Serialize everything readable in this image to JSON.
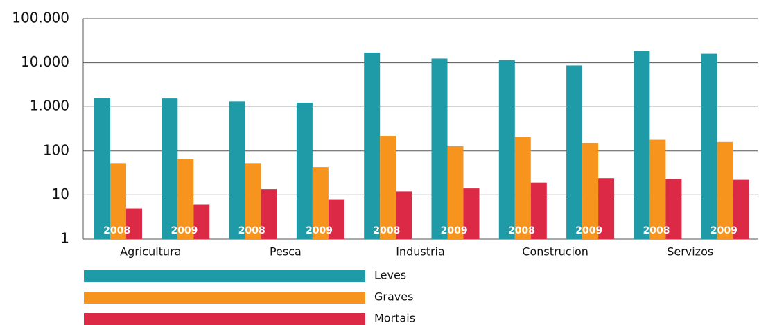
{
  "chart_data": {
    "type": "bar",
    "groups": [
      "Agricultura",
      "Pesca",
      "Industria",
      "Construcion",
      "Servizos"
    ],
    "categories": [
      "2008",
      "2009",
      "2008",
      "2009",
      "2008",
      "2009",
      "2008",
      "2009",
      "2008",
      "2009"
    ],
    "series": [
      {
        "name": "Leves",
        "color": "#1f9ba8",
        "values": [
          1600,
          1550,
          1330,
          1250,
          17000,
          12500,
          11500,
          8700,
          18500,
          16000
        ]
      },
      {
        "name": "Graves",
        "color": "#f7941d",
        "values": [
          53,
          66,
          53,
          43,
          220,
          128,
          210,
          150,
          180,
          160
        ]
      },
      {
        "name": "Mortais",
        "color": "#dc2a46",
        "values": [
          5,
          6,
          13.5,
          8,
          12,
          14,
          19,
          24,
          23,
          22
        ]
      }
    ],
    "log_scale": true,
    "ylim": [
      1,
      100000
    ],
    "yticks": [
      1,
      10,
      100,
      {
        "value": 1000,
        "label": "1.000"
      },
      {
        "value": 10000,
        "label": "10.000"
      },
      {
        "value": 100000,
        "label": "100.000"
      }
    ],
    "grid": true
  }
}
